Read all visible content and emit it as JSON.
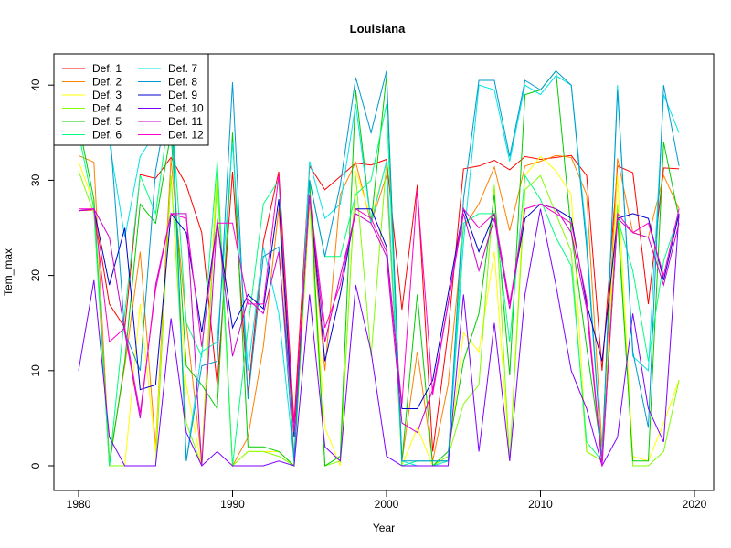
{
  "chart_data": {
    "type": "line",
    "title": "Louisiana",
    "xlabel": "Year",
    "ylabel": "Tem_max",
    "xlim": [
      1980,
      2019
    ],
    "ylim": [
      0,
      42
    ],
    "x_ticks": [
      1980,
      1990,
      2000,
      2010,
      2020
    ],
    "y_ticks": [
      0,
      10,
      20,
      30,
      40
    ],
    "legend_position": "top-left",
    "x": [
      1980,
      1981,
      1982,
      1983,
      1984,
      1985,
      1986,
      1987,
      1988,
      1989,
      1990,
      1991,
      1992,
      1993,
      1994,
      1995,
      1996,
      1997,
      1998,
      1999,
      2000,
      2001,
      2002,
      2003,
      2004,
      2005,
      2006,
      2007,
      2008,
      2009,
      2010,
      2011,
      2012,
      2013,
      2014,
      2015,
      2016,
      2017,
      2018,
      2019
    ],
    "series": [
      {
        "name": "Def. 1",
        "color": "#FF0000",
        "values": [
          26.8,
          26.9,
          17.0,
          14.5,
          30.6,
          30.2,
          32.4,
          29.5,
          24.5,
          8.5,
          30.9,
          7.5,
          23.5,
          30.9,
          4.5,
          31.5,
          29.0,
          30.4,
          31.8,
          31.6,
          32.2,
          16.4,
          29.5,
          1.5,
          14.0,
          31.2,
          31.5,
          32.1,
          31.1,
          32.5,
          32.2,
          32.4,
          32.6,
          30.5,
          10.0,
          31.5,
          30.8,
          17.0,
          31.3,
          31.2
        ]
      },
      {
        "name": "Def. 2",
        "color": "#FF8000",
        "values": [
          32.6,
          31.9,
          0.5,
          10.5,
          22.5,
          2.0,
          32.2,
          15.0,
          0.5,
          31.6,
          0.0,
          3.0,
          12.5,
          27.0,
          1.0,
          27.5,
          10.0,
          28.5,
          31.9,
          25.5,
          30.5,
          0.5,
          12.0,
          0.5,
          8.5,
          25.0,
          27.5,
          31.4,
          24.7,
          31.5,
          32.0,
          32.6,
          32.4,
          28.5,
          2.0,
          32.3,
          24.5,
          24.0,
          30.5,
          27.0
        ]
      },
      {
        "name": "Def. 3",
        "color": "#FFFF00",
        "values": [
          32.0,
          27.5,
          0.0,
          0.0,
          17.0,
          1.5,
          30.5,
          8.5,
          0.0,
          31.7,
          0.0,
          1.5,
          1.5,
          1.5,
          0.0,
          27.5,
          4.0,
          0.0,
          31.0,
          26.0,
          32.0,
          0.0,
          4.0,
          0.0,
          0.5,
          14.0,
          12.0,
          22.5,
          0.5,
          30.5,
          32.5,
          31.0,
          28.5,
          1.5,
          0.5,
          30.5,
          1.0,
          0.5,
          4.5,
          9.0
        ]
      },
      {
        "name": "Def. 4",
        "color": "#80FF00",
        "values": [
          31.0,
          26.5,
          0.0,
          0.0,
          0.0,
          0.0,
          30.5,
          4.5,
          0.0,
          30.0,
          0.0,
          1.5,
          1.5,
          1.0,
          0.0,
          28.0,
          0.0,
          0.5,
          30.5,
          11.5,
          32.0,
          0.0,
          0.0,
          0.0,
          1.0,
          6.5,
          8.5,
          29.5,
          0.5,
          29.0,
          30.5,
          26.5,
          22.5,
          1.5,
          0.5,
          27.5,
          0.0,
          0.0,
          1.5,
          9.0
        ]
      },
      {
        "name": "Def. 5",
        "color": "#00CC00",
        "values": [
          36.0,
          28.0,
          0.0,
          11.0,
          27.5,
          25.5,
          35.0,
          10.5,
          8.5,
          6.0,
          35.0,
          2.0,
          2.0,
          1.5,
          0.0,
          30.0,
          0.0,
          1.0,
          39.5,
          25.5,
          41.0,
          0.5,
          18.0,
          0.0,
          1.5,
          11.0,
          16.0,
          28.5,
          9.5,
          39.0,
          39.5,
          41.5,
          24.5,
          12.5,
          1.0,
          26.0,
          0.5,
          0.5,
          34.0,
          26.0
        ]
      },
      {
        "name": "Def. 6",
        "color": "#00FF80",
        "values": [
          35.0,
          27.0,
          0.0,
          16.0,
          30.5,
          26.5,
          38.5,
          15.0,
          11.5,
          32.0,
          0.0,
          14.5,
          27.5,
          30.0,
          0.0,
          30.0,
          22.0,
          22.0,
          28.5,
          30.0,
          38.0,
          0.0,
          0.5,
          0.5,
          0.5,
          25.5,
          26.5,
          26.5,
          13.0,
          30.5,
          28.0,
          24.0,
          21.0,
          2.5,
          0.5,
          26.0,
          20.5,
          11.0,
          21.5,
          26.5
        ]
      },
      {
        "name": "Def. 7",
        "color": "#00E5E5",
        "values": [
          38.0,
          38.0,
          34.0,
          24.0,
          32.5,
          35.0,
          38.0,
          0.5,
          12.0,
          13.0,
          34.0,
          10.0,
          23.0,
          16.0,
          0.5,
          32.0,
          26.0,
          27.5,
          38.0,
          25.5,
          32.0,
          0.5,
          0.0,
          0.0,
          0.5,
          23.5,
          40.0,
          39.5,
          32.0,
          40.0,
          39.0,
          41.0,
          40.0,
          24.0,
          0.5,
          40.0,
          11.5,
          10.0,
          39.0,
          35.0
        ]
      },
      {
        "name": "Def. 8",
        "color": "#0099CC",
        "values": [
          40.5,
          38.0,
          36.0,
          14.0,
          10.0,
          31.0,
          40.0,
          0.5,
          10.5,
          11.0,
          40.3,
          7.0,
          22.0,
          23.0,
          0.5,
          30.0,
          22.0,
          29.5,
          40.8,
          35.0,
          41.5,
          0.5,
          0.5,
          0.5,
          0.5,
          28.0,
          40.5,
          40.5,
          32.5,
          40.5,
          39.5,
          41.5,
          40.0,
          23.0,
          0.5,
          39.5,
          12.0,
          4.0,
          40.0,
          31.5
        ]
      },
      {
        "name": "Def. 9",
        "color": "#0000CC",
        "values": [
          26.8,
          27.0,
          19.0,
          25.0,
          8.0,
          8.5,
          26.5,
          24.5,
          14.0,
          25.5,
          14.5,
          18.0,
          16.5,
          28.0,
          3.0,
          28.5,
          11.0,
          18.0,
          27.0,
          27.0,
          23.0,
          6.0,
          6.0,
          9.0,
          18.0,
          27.0,
          22.5,
          26.5,
          17.0,
          26.0,
          27.5,
          27.0,
          26.0,
          17.0,
          11.0,
          26.0,
          26.5,
          26.0,
          19.5,
          26.5
        ]
      },
      {
        "name": "Def. 10",
        "color": "#7F00FF",
        "values": [
          10.0,
          19.5,
          3.0,
          0.0,
          0.0,
          0.0,
          15.5,
          3.5,
          0.0,
          1.5,
          0.0,
          0.0,
          0.0,
          0.5,
          0.0,
          18.0,
          2.0,
          0.5,
          19.0,
          12.0,
          1.0,
          0.0,
          0.0,
          0.0,
          0.0,
          18.0,
          1.5,
          15.0,
          0.5,
          18.0,
          27.0,
          19.0,
          10.0,
          6.0,
          0.0,
          3.0,
          16.0,
          6.0,
          2.5,
          26.5
        ]
      },
      {
        "name": "Def. 11",
        "color": "#CC00CC",
        "values": [
          26.8,
          27.0,
          24.0,
          14.0,
          5.0,
          19.0,
          26.5,
          26.5,
          0.0,
          26.0,
          11.5,
          17.5,
          16.0,
          22.5,
          3.5,
          28.5,
          13.0,
          20.0,
          26.5,
          25.5,
          22.0,
          4.5,
          3.5,
          8.0,
          17.0,
          26.5,
          20.5,
          26.0,
          16.5,
          27.0,
          27.5,
          27.0,
          24.5,
          16.5,
          0.0,
          26.0,
          24.5,
          24.0,
          19.0,
          25.5
        ]
      },
      {
        "name": "Def. 12",
        "color": "#FF00CC",
        "values": [
          27.0,
          27.0,
          13.0,
          14.5,
          5.5,
          18.5,
          26.5,
          26.0,
          12.5,
          25.5,
          25.5,
          17.0,
          17.0,
          30.5,
          3.5,
          28.5,
          14.5,
          19.0,
          27.0,
          26.0,
          22.5,
          6.5,
          29.0,
          7.5,
          17.0,
          27.0,
          25.0,
          26.5,
          17.0,
          27.0,
          27.5,
          26.5,
          25.5,
          17.5,
          0.0,
          26.5,
          24.5,
          25.5,
          20.0,
          27.0
        ]
      }
    ]
  }
}
